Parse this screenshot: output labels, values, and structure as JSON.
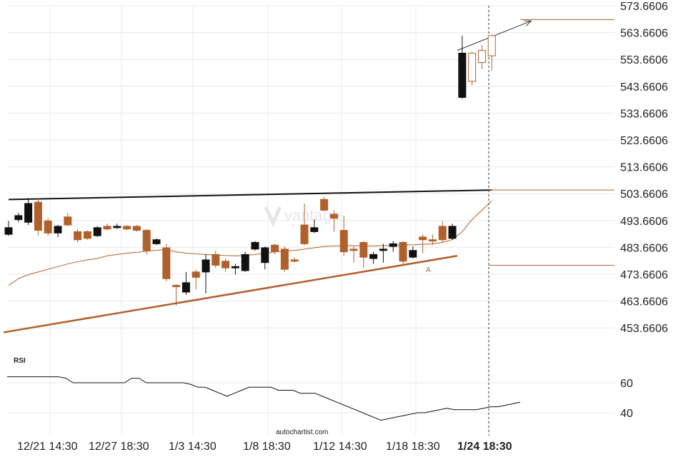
{
  "chart_data": {
    "type": "candlestick",
    "price_axis": {
      "ticks": [
        "573.6606",
        "563.6606",
        "553.6606",
        "543.6606",
        "533.6606",
        "523.6606",
        "513.6606",
        "503.6606",
        "493.6606",
        "483.6606",
        "473.6606",
        "463.6606",
        "453.6606"
      ],
      "range": [
        449.5,
        575.0
      ]
    },
    "time_axis": {
      "labels": [
        "12/21 14:30",
        "12/27 18:30",
        "1/3 14:30",
        "1/8 18:30",
        "1/12 14:30",
        "1/18 18:30",
        "1/24 18:30"
      ],
      "current_label": "1/24 18:30"
    },
    "rsi": {
      "title": "RSI",
      "ticks": [
        "60",
        "40"
      ],
      "values": [
        64,
        64,
        64,
        64,
        64,
        64,
        64,
        64,
        63,
        60,
        60,
        60,
        60,
        60,
        60,
        60,
        60,
        63,
        63,
        60,
        60,
        60,
        60,
        60,
        60,
        59,
        57,
        57,
        55,
        53,
        51,
        53,
        55,
        57,
        57,
        57,
        57,
        55,
        55,
        55,
        53,
        53,
        53,
        51,
        49,
        47,
        45,
        43,
        41,
        39,
        37,
        35,
        36,
        37,
        38,
        39,
        40,
        40,
        41,
        42,
        43,
        42,
        42,
        42,
        42,
        43,
        44,
        44,
        45,
        46,
        47
      ]
    },
    "candles": [
      {
        "o": 491.0,
        "h": 493.5,
        "l": 488.0,
        "c": 488.5,
        "bull": true
      },
      {
        "o": 494.0,
        "h": 496.5,
        "l": 493.0,
        "c": 495.5,
        "bull": true
      },
      {
        "o": 493.0,
        "h": 502.0,
        "l": 492.0,
        "c": 500.0,
        "bull": true
      },
      {
        "o": 500.5,
        "h": 502.0,
        "l": 488.0,
        "c": 490.0,
        "bull": false
      },
      {
        "o": 493.5,
        "h": 494.5,
        "l": 488.0,
        "c": 489.0,
        "bull": false
      },
      {
        "o": 489.0,
        "h": 492.0,
        "l": 487.5,
        "c": 491.5,
        "bull": true
      },
      {
        "o": 495.0,
        "h": 496.5,
        "l": 491.5,
        "c": 492.0,
        "bull": false
      },
      {
        "o": 489.5,
        "h": 490.5,
        "l": 485.5,
        "c": 486.5,
        "bull": false
      },
      {
        "o": 489.5,
        "h": 490.0,
        "l": 486.5,
        "c": 487.0,
        "bull": false
      },
      {
        "o": 488.0,
        "h": 491.5,
        "l": 487.5,
        "c": 491.0,
        "bull": true
      },
      {
        "o": 491.5,
        "h": 492.5,
        "l": 490.0,
        "c": 490.5,
        "bull": false
      },
      {
        "o": 491.0,
        "h": 492.5,
        "l": 490.5,
        "c": 491.5,
        "bull": true
      },
      {
        "o": 491.5,
        "h": 492.0,
        "l": 490.0,
        "c": 490.5,
        "bull": false
      },
      {
        "o": 491.5,
        "h": 492.0,
        "l": 489.5,
        "c": 490.0,
        "bull": false
      },
      {
        "o": 490.0,
        "h": 490.5,
        "l": 481.0,
        "c": 482.5,
        "bull": false
      },
      {
        "o": 485.0,
        "h": 487.0,
        "l": 484.5,
        "c": 486.5,
        "bull": true
      },
      {
        "o": 483.5,
        "h": 485.0,
        "l": 471.0,
        "c": 472.0,
        "bull": false
      },
      {
        "o": 469.5,
        "h": 470.0,
        "l": 462.0,
        "c": 469.0,
        "bull": false
      },
      {
        "o": 467.0,
        "h": 474.5,
        "l": 466.0,
        "c": 470.5,
        "bull": true
      },
      {
        "o": 474.5,
        "h": 475.5,
        "l": 468.0,
        "c": 472.5,
        "bull": false
      },
      {
        "o": 474.5,
        "h": 481.0,
        "l": 466.5,
        "c": 479.0,
        "bull": true
      },
      {
        "o": 481.0,
        "h": 482.5,
        "l": 476.0,
        "c": 477.0,
        "bull": false
      },
      {
        "o": 478.5,
        "h": 479.5,
        "l": 474.5,
        "c": 476.0,
        "bull": false
      },
      {
        "o": 476.0,
        "h": 477.5,
        "l": 473.5,
        "c": 476.5,
        "bull": true
      },
      {
        "o": 475.0,
        "h": 482.0,
        "l": 474.5,
        "c": 481.0,
        "bull": true
      },
      {
        "o": 485.5,
        "h": 486.0,
        "l": 482.5,
        "c": 483.0,
        "bull": true
      },
      {
        "o": 478.0,
        "h": 484.0,
        "l": 475.5,
        "c": 483.5,
        "bull": true
      },
      {
        "o": 484.5,
        "h": 485.0,
        "l": 481.0,
        "c": 482.0,
        "bull": false
      },
      {
        "o": 483.0,
        "h": 484.0,
        "l": 474.5,
        "c": 475.5,
        "bull": false
      },
      {
        "o": 479.0,
        "h": 480.0,
        "l": 478.0,
        "c": 478.5,
        "bull": false
      },
      {
        "o": 492.0,
        "h": 500.0,
        "l": 484.5,
        "c": 485.0,
        "bull": false
      },
      {
        "o": 489.5,
        "h": 494.0,
        "l": 489.0,
        "c": 491.0,
        "bull": true
      },
      {
        "o": 501.5,
        "h": 502.5,
        "l": 497.0,
        "c": 497.5,
        "bull": false
      },
      {
        "o": 496.0,
        "h": 497.5,
        "l": 489.5,
        "c": 494.5,
        "bull": false
      },
      {
        "o": 490.0,
        "h": 495.5,
        "l": 480.5,
        "c": 482.0,
        "bull": false
      },
      {
        "o": 483.0,
        "h": 484.0,
        "l": 478.0,
        "c": 482.5,
        "bull": false
      },
      {
        "o": 485.5,
        "h": 486.0,
        "l": 476.0,
        "c": 480.0,
        "bull": false
      },
      {
        "o": 479.5,
        "h": 482.0,
        "l": 477.5,
        "c": 481.0,
        "bull": true
      },
      {
        "o": 482.5,
        "h": 485.0,
        "l": 478.0,
        "c": 483.0,
        "bull": true
      },
      {
        "o": 484.0,
        "h": 486.0,
        "l": 482.0,
        "c": 485.0,
        "bull": true
      },
      {
        "o": 485.5,
        "h": 486.0,
        "l": 477.0,
        "c": 478.5,
        "bull": false
      },
      {
        "o": 480.0,
        "h": 484.0,
        "l": 479.5,
        "c": 482.5,
        "bull": true
      },
      {
        "o": 487.5,
        "h": 488.5,
        "l": 481.5,
        "c": 486.5,
        "bull": false
      },
      {
        "o": 486.5,
        "h": 488.5,
        "l": 484.5,
        "c": 486.0,
        "bull": false
      },
      {
        "o": 486.5,
        "h": 493.5,
        "l": 485.5,
        "c": 491.5,
        "bull": false
      },
      {
        "o": 487.0,
        "h": 492.5,
        "l": 486.5,
        "c": 491.5,
        "bull": true
      },
      {
        "o": 539.5,
        "h": 562.5,
        "l": 539.0,
        "c": 556.0,
        "bull": true
      },
      {
        "o": 556.0,
        "h": 556.5,
        "l": 544.0,
        "c": 545.5,
        "bull": false
      },
      {
        "o": 552.5,
        "h": 559.0,
        "l": 550.0,
        "c": 557.0,
        "bull": false
      },
      {
        "o": 555.0,
        "h": 563.0,
        "l": 549.5,
        "c": 562.5,
        "bull": false
      }
    ],
    "moving_average": [
      [
        0,
        469.5
      ],
      [
        1,
        472.0
      ],
      [
        2,
        473.5
      ],
      [
        3,
        474.5
      ],
      [
        4,
        475.5
      ],
      [
        5,
        476.5
      ],
      [
        6,
        477.5
      ],
      [
        7,
        478.3
      ],
      [
        8,
        479.0
      ],
      [
        9,
        479.5
      ],
      [
        10,
        480.5
      ],
      [
        11,
        481.0
      ],
      [
        12,
        481.5
      ],
      [
        13,
        481.8
      ],
      [
        14,
        482.2
      ],
      [
        15,
        482.6
      ],
      [
        16,
        482.8
      ],
      [
        17,
        482.0
      ],
      [
        18,
        481.5
      ],
      [
        19,
        481.2
      ],
      [
        20,
        481.0
      ],
      [
        21,
        480.8
      ],
      [
        22,
        480.6
      ],
      [
        23,
        480.5
      ],
      [
        24,
        480.6
      ],
      [
        25,
        481.0
      ],
      [
        26,
        481.5
      ],
      [
        27,
        482.0
      ],
      [
        28,
        482.2
      ],
      [
        29,
        482.5
      ],
      [
        30,
        483.0
      ],
      [
        31,
        483.5
      ],
      [
        32,
        484.0
      ],
      [
        33,
        484.2
      ],
      [
        34,
        484.3
      ],
      [
        35,
        484.3
      ],
      [
        36,
        484.2
      ],
      [
        37,
        484.2
      ],
      [
        38,
        484.3
      ],
      [
        39,
        484.4
      ],
      [
        40,
        484.5
      ],
      [
        41,
        484.6
      ],
      [
        42,
        484.8
      ],
      [
        43,
        485.0
      ],
      [
        44,
        485.5
      ],
      [
        45,
        486.5
      ],
      [
        46,
        489.5
      ],
      [
        47,
        494.0
      ],
      [
        48,
        497.5
      ],
      [
        49,
        501.0
      ]
    ],
    "levels": {
      "upper_trendline": [
        [
          0,
          501.5
        ],
        [
          49,
          505.0
        ]
      ],
      "lower_trendline": [
        [
          -0.5,
          452.0
        ],
        [
          45.5,
          480.5
        ]
      ],
      "resistance_level": 568.5,
      "upper_horizontal": 505.0,
      "lower_horizontal": 477.0,
      "projection_arrow": [
        [
          45.5,
          557.0
        ],
        [
          53,
          568.0
        ]
      ]
    },
    "marker_label": "A",
    "colors": {
      "bull": "#111111",
      "bear": "#b0602a",
      "support": "#b0602a",
      "trendline": "#111111",
      "grid": "#e8e8e8"
    }
  },
  "watermark": {
    "brand": "vantage",
    "sub": "PLUS"
  },
  "footer": {
    "credit": "autochartist.com"
  }
}
